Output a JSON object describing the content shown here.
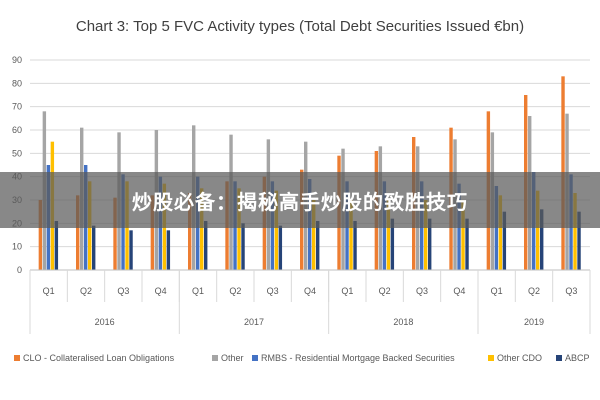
{
  "chart_data": {
    "type": "bar",
    "title": "Chart 3: Top 5 FVC Activity types (Total Debt Securities Issued €bn)",
    "xlabel": "",
    "ylabel": "",
    "ylim": [
      0,
      90
    ],
    "yticks": [
      0,
      10,
      20,
      30,
      40,
      50,
      60,
      70,
      80,
      90
    ],
    "grid": true,
    "legend_position": "bottom",
    "categories": [
      "Q1",
      "Q2",
      "Q3",
      "Q4",
      "Q1",
      "Q2",
      "Q3",
      "Q4",
      "Q1",
      "Q2",
      "Q3",
      "Q4",
      "Q1",
      "Q2",
      "Q3"
    ],
    "groups": [
      {
        "label": "2016",
        "count": 4
      },
      {
        "label": "2017",
        "count": 4
      },
      {
        "label": "2018",
        "count": 4
      },
      {
        "label": "2019",
        "count": 3
      }
    ],
    "series": [
      {
        "name": "CLO - Collateralised Loan Obligations",
        "color": "#ED7D31",
        "values": [
          30,
          32,
          31,
          32,
          33,
          38,
          40,
          43,
          49,
          51,
          57,
          61,
          68,
          75,
          83
        ]
      },
      {
        "name": "Other",
        "color": "#A5A5A5",
        "values": [
          68,
          61,
          59,
          60,
          62,
          58,
          56,
          55,
          52,
          53,
          53,
          56,
          59,
          66,
          67
        ]
      },
      {
        "name": "RMBS - Residential Mortgage Backed Securities",
        "color": "#4472C4",
        "values": [
          45,
          45,
          41,
          40,
          40,
          38,
          38,
          39,
          38,
          38,
          38,
          37,
          36,
          42,
          41
        ]
      },
      {
        "name": "Other CDO",
        "color": "#FFC000",
        "values": [
          55,
          38,
          38,
          37,
          35,
          35,
          34,
          30,
          30,
          30,
          30,
          30,
          32,
          34,
          33
        ]
      },
      {
        "name": "ABCP",
        "color": "#264478",
        "values": [
          21,
          19,
          17,
          17,
          21,
          20,
          19,
          21,
          21,
          22,
          22,
          22,
          25,
          26,
          25
        ]
      }
    ]
  },
  "overlay": {
    "text": "炒股必备：揭秘高手炒股的致胜技巧"
  }
}
